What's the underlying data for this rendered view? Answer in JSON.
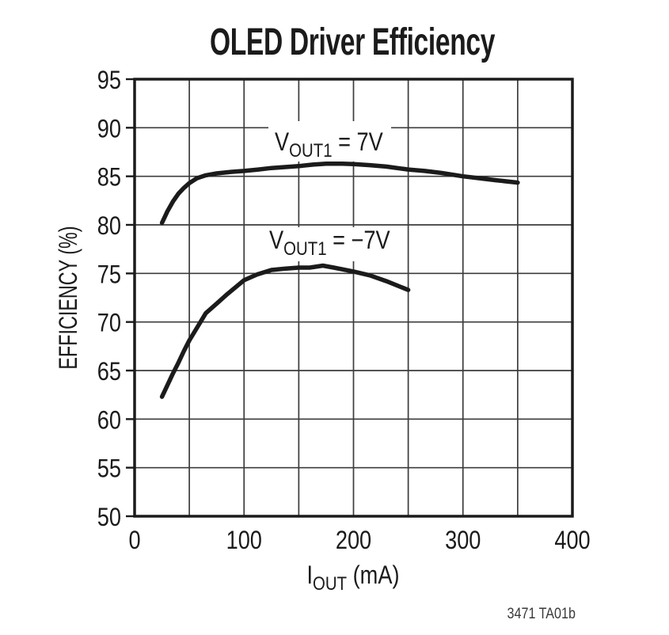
{
  "title": "OLED Driver Efficiency",
  "footnote": "3471 TA01b",
  "axis_labels": {
    "y": "EFFICIENCY (%)",
    "x_main": "I",
    "x_sub": "OUT",
    "x_rest": " (mA)"
  },
  "curve_labels": {
    "c1_main": "V",
    "c1_sub": "OUT1",
    "c1_rest": " = 7V",
    "c2_main": "V",
    "c2_sub": "OUT1",
    "c2_rest": " = −7V"
  },
  "colors": {
    "background": "#ffffff",
    "curve": "#1b1b1b",
    "grid": "#3c3c3c",
    "border": "#1b1b1b",
    "text": "#1b1b1b",
    "footnote": "#3a3a3a"
  },
  "chart_data": {
    "type": "line",
    "title": "OLED Driver Efficiency",
    "xlabel": "IOUT (mA)",
    "ylabel": "EFFICIENCY (%)",
    "xlim": [
      0,
      400
    ],
    "ylim": [
      50,
      95
    ],
    "x_ticks": [
      0,
      100,
      200,
      300,
      400
    ],
    "y_ticks": [
      50,
      55,
      60,
      65,
      70,
      75,
      80,
      85,
      90,
      95
    ],
    "x_grid_step": 50,
    "y_grid_step": 5,
    "grid": true,
    "legend": "inline-labels",
    "series": [
      {
        "name": "VOUT1 = 7V",
        "x": [
          25,
          30,
          35,
          40,
          45,
          50,
          57,
          65,
          75,
          88,
          100,
          113,
          125,
          150,
          163,
          175,
          190,
          200,
          215,
          230,
          250,
          265,
          280,
          300,
          315,
          330,
          350
        ],
        "y": [
          80.2,
          81.4,
          82.4,
          83.2,
          83.8,
          84.3,
          84.8,
          85.1,
          85.3,
          85.45,
          85.55,
          85.7,
          85.85,
          86.05,
          86.2,
          86.3,
          86.3,
          86.25,
          86.15,
          86.0,
          85.7,
          85.55,
          85.35,
          85.0,
          84.8,
          84.6,
          84.35
        ]
      },
      {
        "name": "VOUT1 = -7V",
        "x": [
          25,
          30,
          35,
          40,
          45,
          50,
          57,
          65,
          75,
          85,
          100,
          112,
          125,
          138,
          150,
          160,
          172,
          182,
          200,
          215,
          230,
          250
        ],
        "y": [
          62.3,
          63.5,
          64.7,
          65.8,
          67.0,
          68.1,
          69.4,
          70.9,
          71.9,
          72.9,
          74.3,
          74.9,
          75.35,
          75.5,
          75.6,
          75.6,
          75.8,
          75.6,
          75.2,
          74.8,
          74.2,
          73.3
        ]
      }
    ]
  }
}
